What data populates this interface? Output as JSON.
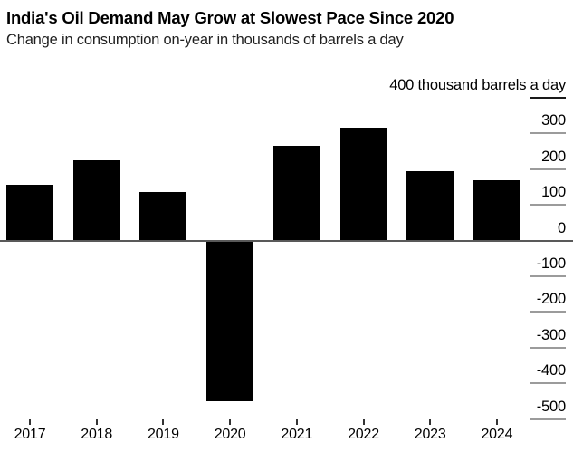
{
  "header": {
    "title": "India's Oil Demand May Grow at Slowest Pace Since 2020",
    "subtitle": "Change in consumption on-year in thousands of barrels a day"
  },
  "chart_data": {
    "type": "bar",
    "title": "India's Oil Demand May Grow at Slowest Pace Since 2020",
    "subtitle": "Change in consumption on-year in thousands of barrels a day",
    "axis_unit_label": "400 thousand barrels a day",
    "categories": [
      "2017",
      "2018",
      "2019",
      "2020",
      "2021",
      "2022",
      "2023",
      "2024"
    ],
    "values": [
      155,
      225,
      135,
      -450,
      265,
      315,
      195,
      170
    ],
    "xlabel": "",
    "ylabel": "thousand barrels a day",
    "ylim": [
      -500,
      400
    ],
    "ytick_interval": 100,
    "ytick_mark_values": [
      400,
      300,
      200,
      100,
      -100,
      -200,
      -300,
      -400,
      -500
    ],
    "ytick_labels": [
      "300",
      "200",
      "100",
      "0",
      "-100",
      "-200",
      "-300",
      "-400",
      "-500"
    ],
    "axis_labels_side": "right",
    "legend": "none",
    "grid": "tick-segments-right-only",
    "colors": {
      "bar": "#000000",
      "zero_line": "#595959",
      "tick_segment": "#9b9b9b",
      "top_tick_segment": "#1a1a1a",
      "x_tick": "#333333",
      "text": "#000000"
    }
  }
}
